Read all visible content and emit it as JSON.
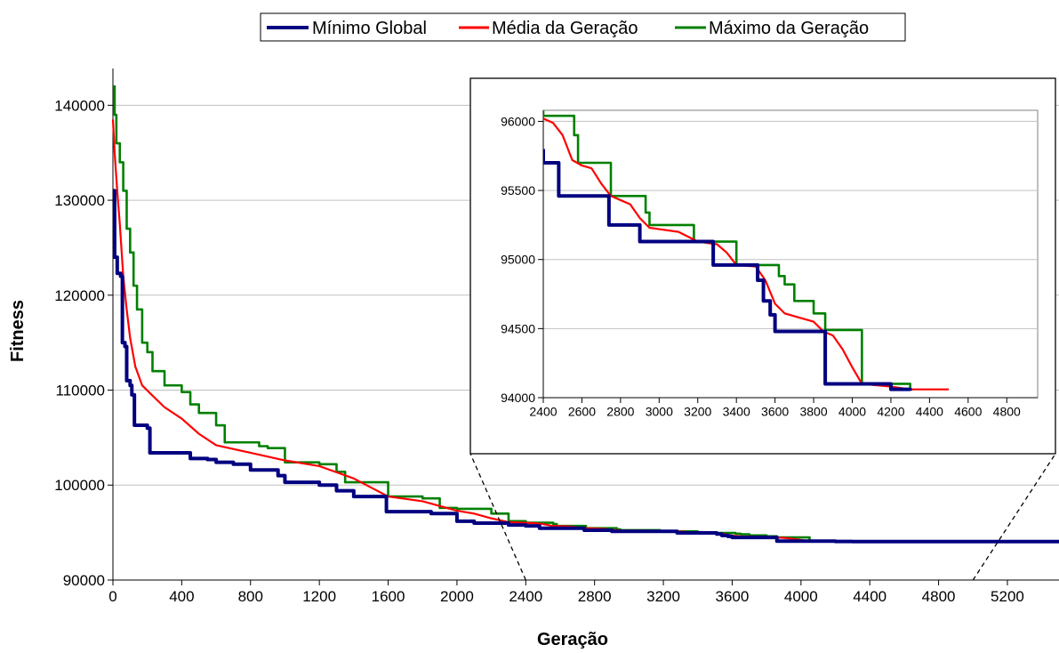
{
  "chart_data": [
    {
      "type": "line",
      "title": "",
      "xlabel": "Geração",
      "ylabel": "Fitness",
      "xlim": [
        0,
        5500
      ],
      "ylim": [
        90000,
        142000
      ],
      "x_ticks": [
        0,
        400,
        800,
        1200,
        1600,
        2000,
        2400,
        2800,
        3200,
        3600,
        4000,
        4400,
        4800,
        5200
      ],
      "y_ticks": [
        90000,
        100000,
        110000,
        120000,
        130000,
        140000
      ],
      "grid": "horizontal",
      "legend_placement": "top-center",
      "series": [
        {
          "name": "Mínimo Global",
          "color": "#000080",
          "step": true,
          "points": [
            [
              0,
              131000
            ],
            [
              10,
              124000
            ],
            [
              25,
              122300
            ],
            [
              45,
              122000
            ],
            [
              55,
              115000
            ],
            [
              70,
              114600
            ],
            [
              80,
              111000
            ],
            [
              100,
              110500
            ],
            [
              110,
              109500
            ],
            [
              125,
              106300
            ],
            [
              200,
              106000
            ],
            [
              215,
              103400
            ],
            [
              450,
              102800
            ],
            [
              550,
              102700
            ],
            [
              600,
              102400
            ],
            [
              700,
              102200
            ],
            [
              800,
              101600
            ],
            [
              960,
              101000
            ],
            [
              1000,
              100300
            ],
            [
              1200,
              100000
            ],
            [
              1300,
              99400
            ],
            [
              1400,
              98800
            ],
            [
              1590,
              97200
            ],
            [
              1850,
              97000
            ],
            [
              2000,
              96200
            ],
            [
              2100,
              96000
            ],
            [
              2300,
              95800
            ],
            [
              2400,
              95700
            ],
            [
              2480,
              95460
            ],
            [
              2740,
              95250
            ],
            [
              2900,
              95130
            ],
            [
              3280,
              94960
            ],
            [
              3480,
              94960
            ],
            [
              3510,
              94850
            ],
            [
              3540,
              94700
            ],
            [
              3575,
              94600
            ],
            [
              3600,
              94480
            ],
            [
              3860,
              94100
            ],
            [
              4200,
              94060
            ],
            [
              4300,
              94050
            ],
            [
              5500,
              94050
            ]
          ]
        },
        {
          "name": "Média da Geração",
          "color": "#ff0000",
          "step": false,
          "points": [
            [
              0,
              138500
            ],
            [
              10,
              135000
            ],
            [
              25,
              131000
            ],
            [
              40,
              127500
            ],
            [
              60,
              122000
            ],
            [
              80,
              118500
            ],
            [
              100,
              115500
            ],
            [
              130,
              112500
            ],
            [
              170,
              110500
            ],
            [
              220,
              109600
            ],
            [
              300,
              108200
            ],
            [
              400,
              107000
            ],
            [
              500,
              105400
            ],
            [
              600,
              104200
            ],
            [
              800,
              103400
            ],
            [
              1000,
              102600
            ],
            [
              1200,
              102000
            ],
            [
              1400,
              100700
            ],
            [
              1600,
              98800
            ],
            [
              1800,
              98300
            ],
            [
              2000,
              97300
            ],
            [
              2100,
              97000
            ],
            [
              2200,
              96500
            ],
            [
              2300,
              96100
            ],
            [
              2400,
              96020
            ],
            [
              2450,
              95990
            ],
            [
              2500,
              95900
            ],
            [
              2550,
              95720
            ],
            [
              2600,
              95680
            ],
            [
              2650,
              95660
            ],
            [
              2700,
              95550
            ],
            [
              2750,
              95460
            ],
            [
              2800,
              95430
            ],
            [
              2850,
              95400
            ],
            [
              2900,
              95300
            ],
            [
              2950,
              95230
            ],
            [
              3000,
              95220
            ],
            [
              3100,
              95200
            ],
            [
              3200,
              95130
            ],
            [
              3300,
              95110
            ],
            [
              3350,
              95050
            ],
            [
              3400,
              94960
            ],
            [
              3500,
              94950
            ],
            [
              3550,
              94850
            ],
            [
              3600,
              94680
            ],
            [
              3650,
              94610
            ],
            [
              3700,
              94590
            ],
            [
              3800,
              94550
            ],
            [
              3850,
              94480
            ],
            [
              3900,
              94450
            ],
            [
              3950,
              94350
            ],
            [
              4000,
              94220
            ],
            [
              4050,
              94100
            ],
            [
              4200,
              94080
            ],
            [
              4300,
              94060
            ],
            [
              4500,
              94060
            ],
            [
              5500,
              94050
            ]
          ]
        },
        {
          "name": "Máximo da Geração",
          "color": "#008000",
          "step": true,
          "points": [
            [
              0,
              142000
            ],
            [
              10,
              139000
            ],
            [
              20,
              136000
            ],
            [
              40,
              134000
            ],
            [
              60,
              131000
            ],
            [
              80,
              127000
            ],
            [
              100,
              124500
            ],
            [
              120,
              121000
            ],
            [
              140,
              118500
            ],
            [
              170,
              115000
            ],
            [
              200,
              114000
            ],
            [
              230,
              112000
            ],
            [
              300,
              110500
            ],
            [
              400,
              109800
            ],
            [
              450,
              108500
            ],
            [
              500,
              107600
            ],
            [
              600,
              106300
            ],
            [
              650,
              104500
            ],
            [
              850,
              104100
            ],
            [
              900,
              103900
            ],
            [
              1000,
              102400
            ],
            [
              1200,
              102200
            ],
            [
              1300,
              101400
            ],
            [
              1350,
              100300
            ],
            [
              1600,
              98800
            ],
            [
              1800,
              98600
            ],
            [
              1900,
              97600
            ],
            [
              2000,
              97500
            ],
            [
              2200,
              97000
            ],
            [
              2300,
              96200
            ],
            [
              2400,
              96040
            ],
            [
              2560,
              95900
            ],
            [
              2580,
              95700
            ],
            [
              2750,
              95460
            ],
            [
              2930,
              95340
            ],
            [
              2950,
              95250
            ],
            [
              3180,
              95130
            ],
            [
              3400,
              94960
            ],
            [
              3600,
              94960
            ],
            [
              3620,
              94880
            ],
            [
              3650,
              94820
            ],
            [
              3700,
              94700
            ],
            [
              3800,
              94610
            ],
            [
              3860,
              94490
            ],
            [
              4050,
              94100
            ],
            [
              4300,
              94060
            ],
            [
              5500,
              94060
            ]
          ]
        }
      ]
    },
    {
      "type": "line",
      "title": "",
      "xlabel": "",
      "ylabel": "",
      "xlim": [
        2400,
        4960
      ],
      "ylim": [
        94000,
        96080
      ],
      "x_ticks": [
        2400,
        2600,
        2800,
        3000,
        3200,
        3400,
        3600,
        3800,
        4000,
        4200,
        4400,
        4600,
        4800
      ],
      "y_ticks": [
        94000,
        94500,
        95000,
        95500,
        96000
      ],
      "grid": "horizontal",
      "legend_placement": "none",
      "inset_of_range": [
        2400,
        5000
      ],
      "series": [
        {
          "name": "Mínimo Global",
          "color": "#000080",
          "ref": 0
        },
        {
          "name": "Média da Geração",
          "color": "#ff0000",
          "ref": 1
        },
        {
          "name": "Máximo da Geração",
          "color": "#008000",
          "ref": 2
        }
      ]
    }
  ],
  "legend": {
    "items": [
      {
        "label": "Mínimo Global",
        "color": "#000080"
      },
      {
        "label": "Média da Geração",
        "color": "#ff0000"
      },
      {
        "label": "Máximo da Geração",
        "color": "#008000"
      }
    ]
  }
}
